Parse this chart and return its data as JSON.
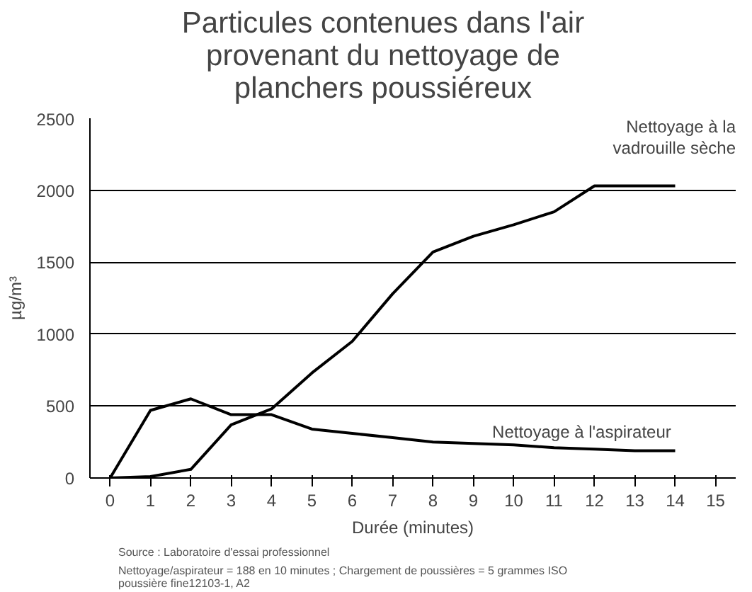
{
  "chart_data": {
    "type": "line",
    "title": "Particules contenues dans l'air\nprovenant du nettoyage de\nplanchers poussiéreux",
    "xlabel": "Durée (minutes)",
    "ylabel": "µg/m³",
    "x": [
      0,
      1,
      2,
      3,
      4,
      5,
      6,
      7,
      8,
      9,
      10,
      11,
      12,
      13,
      14
    ],
    "series": [
      {
        "name": "Nettoyage à la\nvadrouille sèche",
        "color": "#000000",
        "values": [
          0,
          10,
          60,
          370,
          480,
          730,
          950,
          1280,
          1570,
          1680,
          1760,
          1850,
          2030,
          2030,
          2030
        ]
      },
      {
        "name": "Nettoyage à l'aspirateur",
        "color": "#000000",
        "values": [
          0,
          470,
          550,
          440,
          440,
          340,
          310,
          280,
          250,
          240,
          230,
          210,
          200,
          190,
          190
        ]
      }
    ],
    "xlim": [
      -0.5,
      15.5
    ],
    "xticks": [
      0,
      1,
      2,
      3,
      4,
      5,
      6,
      7,
      8,
      9,
      10,
      11,
      12,
      13,
      14,
      15
    ],
    "ylim": [
      0,
      2500
    ],
    "yticks": [
      0,
      500,
      1000,
      1500,
      2000,
      2500
    ],
    "grid": "y",
    "marker": "none",
    "line_style": "solid",
    "annotations": [
      "Source : Laboratoire d'essai professionnel",
      "Nettoyage/aspirateur = 188 en 10 minutes ; Chargement de poussières = 5 grammes ISO\npoussière fine12103-1, A2"
    ]
  }
}
